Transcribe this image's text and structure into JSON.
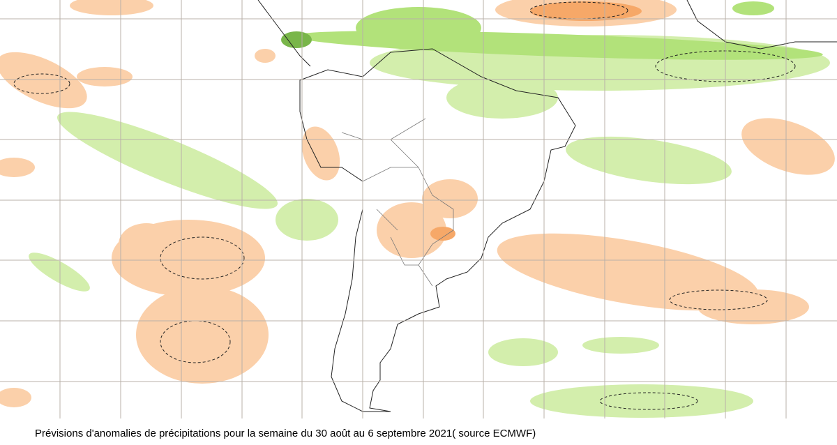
{
  "caption": "Prévisions d'anomalies de précipitations pour la semaine du 30 août au 6 septembre 2021( source ECMWF)"
}
